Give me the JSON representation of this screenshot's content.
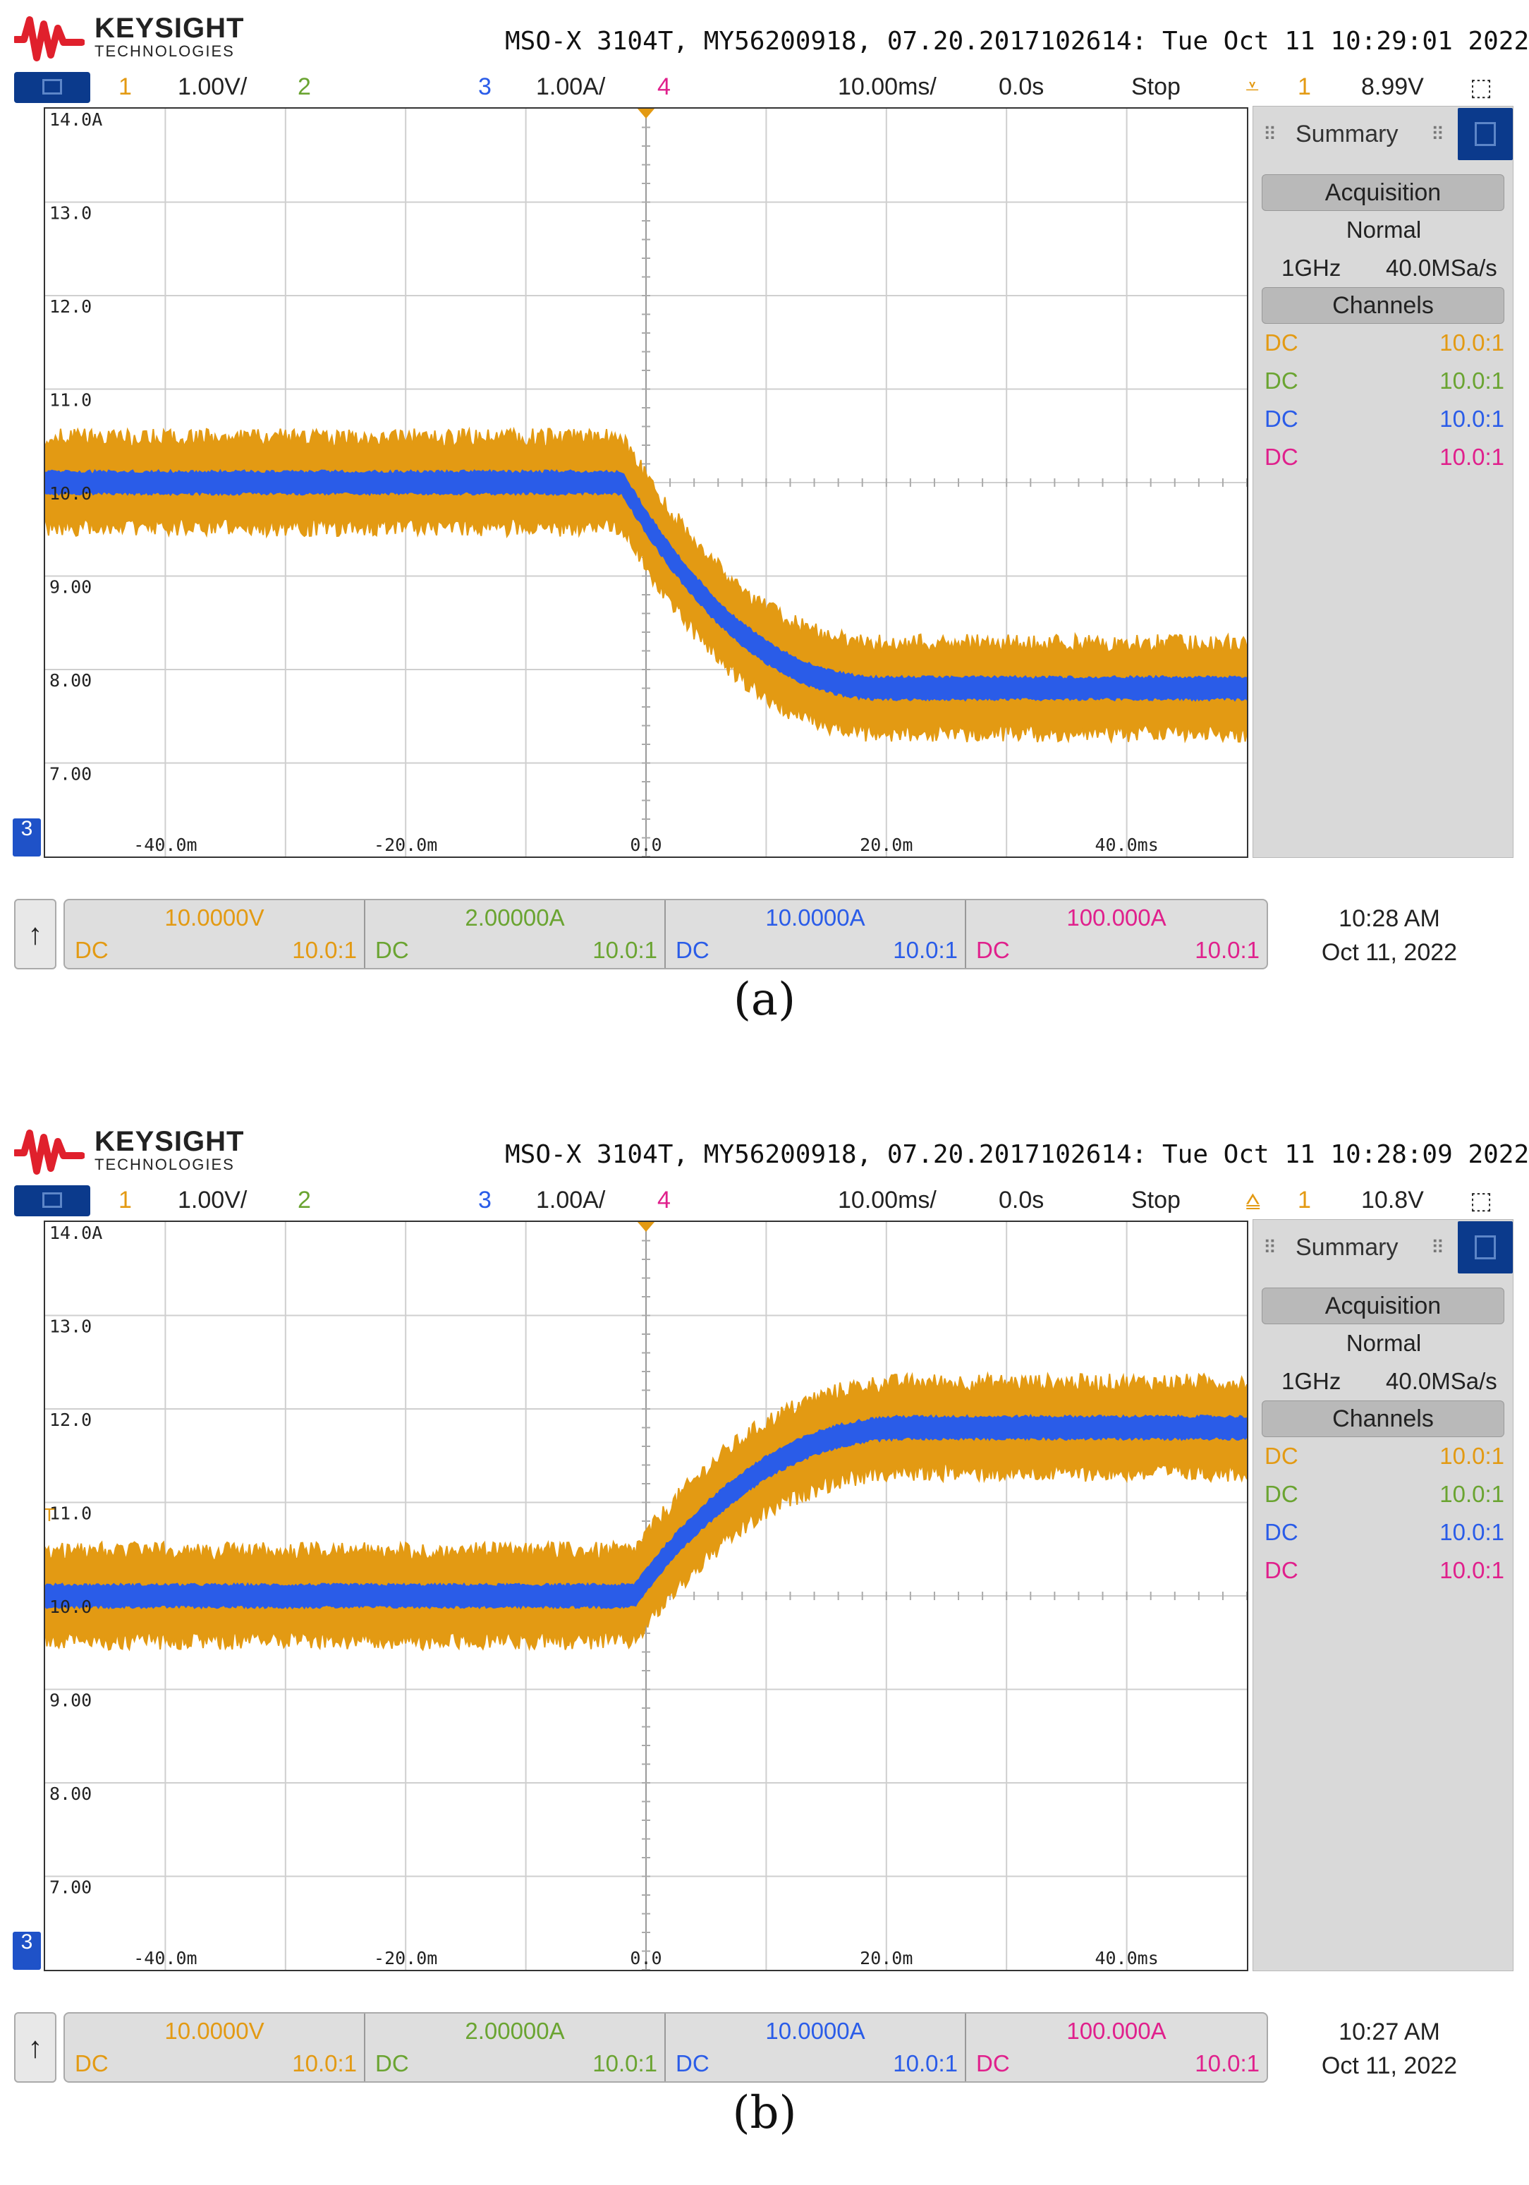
{
  "brand": {
    "name": "KEYSIGHT",
    "sub": "TECHNOLOGIES"
  },
  "colors": {
    "ch1": "#e39a13",
    "ch2": "#6aa431",
    "ch3": "#2a5ce8",
    "ch4": "#e0208c",
    "menu": "#0b3a8c"
  },
  "icons": [
    "keysight-wave-logo",
    "menu-icon",
    "trigger-edge-icon",
    "fit-screen-icon",
    "up-arrow-icon"
  ],
  "panels": [
    {
      "title": "MSO-X 3104T, MY56200918, 07.20.2017102614: Tue Oct 11 10:29:01 2022",
      "status": {
        "ch1_num": "1",
        "ch1_scale": "1.00V/",
        "ch2_num": "2",
        "ch3_num": "3",
        "ch3_scale": "1.00A/",
        "ch4_num": "4",
        "timebase": "10.00ms/",
        "delay": "0.0s",
        "run": "Stop",
        "trig_icon": "⩡",
        "trig_src": "1",
        "trig_level": "8.99V",
        "fit": "⬚"
      },
      "y_labels": [
        "14.0A",
        "13.0",
        "12.0",
        "11.0",
        "10.0",
        "9.00",
        "8.00",
        "7.00"
      ],
      "x_labels": [
        "-40.0m",
        "-20.0m",
        "0.0",
        "20.0m",
        "40.0ms"
      ],
      "trigger_marker": "T",
      "ch3_marker": "3",
      "summary": {
        "title": "Summary",
        "acq_header": "Acquisition",
        "mode": "Normal",
        "bw": "1GHz",
        "rate": "40.0MSa/s",
        "ch_header": "Channels",
        "channels": [
          {
            "coupling": "DC",
            "probe": "10.0:1"
          },
          {
            "coupling": "DC",
            "probe": "10.0:1"
          },
          {
            "coupling": "DC",
            "probe": "10.0:1"
          },
          {
            "coupling": "DC",
            "probe": "10.0:1"
          }
        ]
      },
      "channel_boxes": [
        {
          "scale": "10.0000V",
          "coupling": "DC",
          "probe": "10.0:1"
        },
        {
          "scale": "2.00000A",
          "coupling": "DC",
          "probe": "10.0:1"
        },
        {
          "scale": "10.0000A",
          "coupling": "DC",
          "probe": "10.0:1"
        },
        {
          "scale": "100.000A",
          "coupling": "DC",
          "probe": "10.0:1"
        }
      ],
      "up_arrow": "↑",
      "clock_time": "10:28 AM",
      "clock_date": "Oct 11, 2022",
      "caption": "(a)",
      "waveform": {
        "x_range_ms": [
          -50,
          50
        ],
        "y_range_A": [
          6.0,
          14.0
        ],
        "start": 10.0,
        "end": 7.8,
        "transition_ms": [
          -2,
          20
        ],
        "ch1_noise_band": 0.55,
        "ch3_noise_band": 0.12
      }
    },
    {
      "title": "MSO-X 3104T, MY56200918, 07.20.2017102614: Tue Oct 11 10:28:09 2022",
      "status": {
        "ch1_num": "1",
        "ch1_scale": "1.00V/",
        "ch2_num": "2",
        "ch3_num": "3",
        "ch3_scale": "1.00A/",
        "ch4_num": "4",
        "timebase": "10.00ms/",
        "delay": "0.0s",
        "run": "Stop",
        "trig_icon": "⩠",
        "trig_src": "1",
        "trig_level": "10.8V",
        "fit": "⬚"
      },
      "y_labels": [
        "14.0A",
        "13.0",
        "12.0",
        "11.0",
        "10.0",
        "9.00",
        "8.00",
        "7.00"
      ],
      "x_labels": [
        "-40.0m",
        "-20.0m",
        "0.0",
        "20.0m",
        "40.0ms"
      ],
      "trigger_marker": "T",
      "ch3_marker": "3",
      "summary": {
        "title": "Summary",
        "acq_header": "Acquisition",
        "mode": "Normal",
        "bw": "1GHz",
        "rate": "40.0MSa/s",
        "ch_header": "Channels",
        "channels": [
          {
            "coupling": "DC",
            "probe": "10.0:1"
          },
          {
            "coupling": "DC",
            "probe": "10.0:1"
          },
          {
            "coupling": "DC",
            "probe": "10.0:1"
          },
          {
            "coupling": "DC",
            "probe": "10.0:1"
          }
        ]
      },
      "channel_boxes": [
        {
          "scale": "10.0000V",
          "coupling": "DC",
          "probe": "10.0:1"
        },
        {
          "scale": "2.00000A",
          "coupling": "DC",
          "probe": "10.0:1"
        },
        {
          "scale": "10.0000A",
          "coupling": "DC",
          "probe": "10.0:1"
        },
        {
          "scale": "100.000A",
          "coupling": "DC",
          "probe": "10.0:1"
        }
      ],
      "up_arrow": "↑",
      "clock_time": "10:27 AM",
      "clock_date": "Oct 11, 2022",
      "caption": "(b)",
      "waveform": {
        "x_range_ms": [
          -50,
          50
        ],
        "y_range_A": [
          6.0,
          14.0
        ],
        "start": 10.0,
        "end": 11.8,
        "transition_ms": [
          -1,
          22
        ],
        "ch1_noise_band": 0.55,
        "ch3_noise_band": 0.12
      }
    }
  ]
}
